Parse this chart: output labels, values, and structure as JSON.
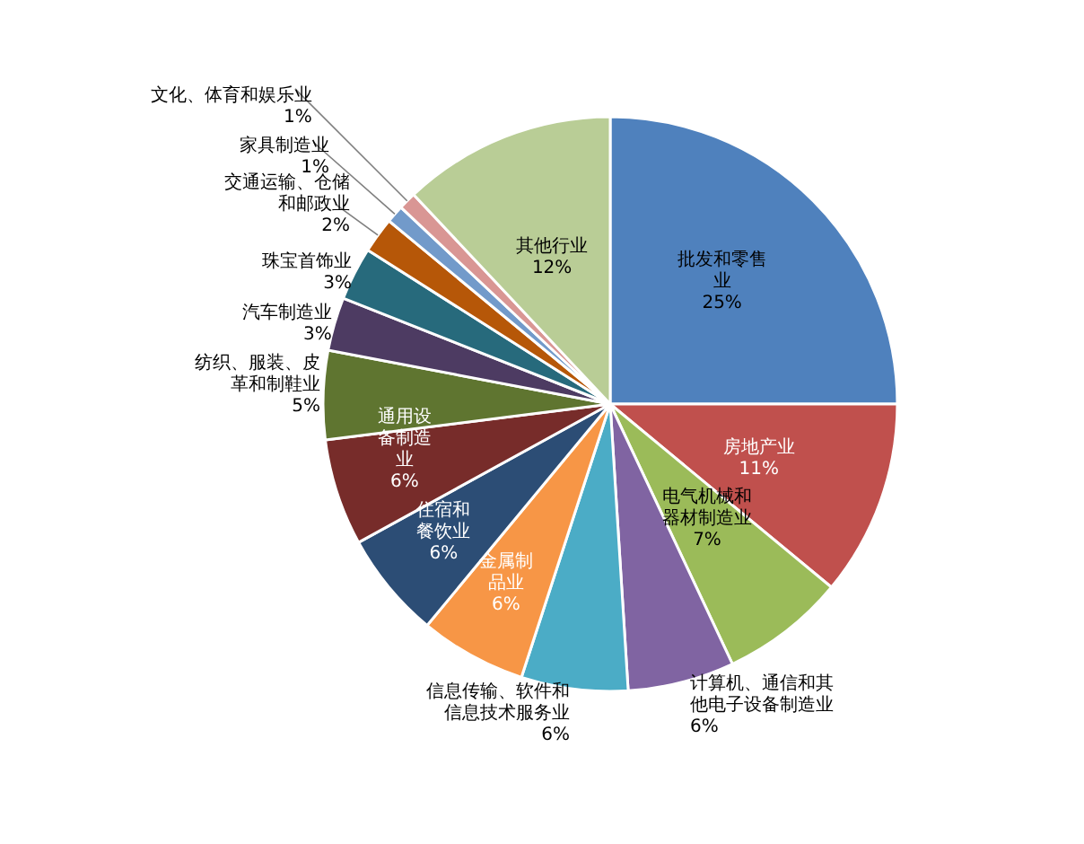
{
  "chart_data": {
    "type": "pie",
    "categories": [
      "批发和零售业",
      "房地产业",
      "电气机械和器材制造业",
      "计算机、通信和其他电子设备制造业",
      "信息传输、软件和信息技术服务业",
      "金属制品业",
      "住宿和餐饮业",
      "通用设备制造业",
      "纺织、服装、皮革和制鞋业",
      "汽车制造业",
      "珠宝首饰业",
      "交通运输、仓储和邮政业",
      "家具制造业",
      "文化、体育和娱乐业",
      "其他行业"
    ],
    "values": [
      25,
      11,
      7,
      6,
      6,
      6,
      6,
      6,
      5,
      3,
      3,
      2,
      1,
      1,
      12
    ],
    "value_labels": [
      "25%",
      "11%",
      "7%",
      "6%",
      "6%",
      "6%",
      "6%",
      "6%",
      "5%",
      "3%",
      "3%",
      "2%",
      "1%",
      "1%",
      "12%"
    ],
    "colors": [
      "#4f81bd",
      "#c0504d",
      "#9bbb59",
      "#8064a2",
      "#4bacc6",
      "#f79646",
      "#2c4d75",
      "#772c2a",
      "#5f7530",
      "#4d3b62",
      "#276a7c",
      "#b65708",
      "#729aca",
      "#d99694",
      "#b9cd96"
    ]
  }
}
